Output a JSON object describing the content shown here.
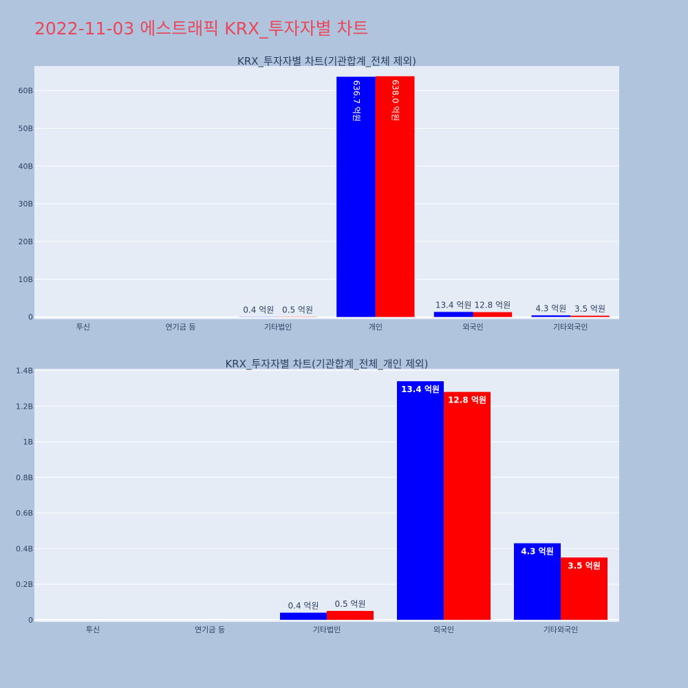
{
  "title": "2022-11-03 에스트래픽 KRX_투자자별 차트",
  "colors": {
    "background": "#b0c4de",
    "plot_bg": "#e5ecf6",
    "title": "#e8485a",
    "series1": "#0000ff",
    "series2": "#ff0000"
  },
  "chart_data": [
    {
      "type": "bar",
      "title": "KRX_투자자별 차트(기관합계_전체 제외)",
      "categories": [
        "투신",
        "연기금 등",
        "기타법인",
        "개인",
        "외국인",
        "기타외국인"
      ],
      "series": [
        {
          "values": [
            0,
            0,
            40000000,
            63670000000,
            1340000000,
            430000000
          ],
          "labels": [
            "",
            "",
            "0.4 억원",
            "636.7 억원",
            "13.4 억원",
            "4.3 억원"
          ]
        },
        {
          "values": [
            0,
            0,
            50000000,
            63800000000,
            1280000000,
            350000000
          ],
          "labels": [
            "",
            "",
            "0.5 억원",
            "638.0 억원",
            "12.8 억원",
            "3.5 억원"
          ]
        }
      ],
      "ylim": [
        -600000000,
        66500000000
      ],
      "yticks": [
        0,
        10000000000,
        20000000000,
        30000000000,
        40000000000,
        50000000000,
        60000000000
      ],
      "yticklabels": [
        "0",
        "10B",
        "20B",
        "30B",
        "40B",
        "50B",
        "60B"
      ],
      "grid": true
    },
    {
      "type": "bar",
      "title": "KRX_투자자별 차트(기관합계_전체_개인 제외)",
      "categories": [
        "투신",
        "연기금 등",
        "기타법인",
        "외국인",
        "기타외국인"
      ],
      "series": [
        {
          "values": [
            0,
            0,
            40000000,
            1340000000,
            430000000
          ],
          "labels": [
            "",
            "",
            "0.4 억원",
            "13.4 억원",
            "4.3 억원"
          ]
        },
        {
          "values": [
            0,
            0,
            50000000,
            1280000000,
            350000000
          ],
          "labels": [
            "",
            "",
            "0.5 억원",
            "12.8 억원",
            "3.5 억원"
          ]
        }
      ],
      "ylim": [
        -12000000,
        1410000000
      ],
      "yticks": [
        0,
        200000000,
        400000000,
        600000000,
        800000000,
        1000000000,
        1200000000,
        1400000000
      ],
      "yticklabels": [
        "0",
        "0.2B",
        "0.4B",
        "0.6B",
        "0.8B",
        "1B",
        "1.2B",
        "1.4B"
      ],
      "grid": true
    }
  ]
}
